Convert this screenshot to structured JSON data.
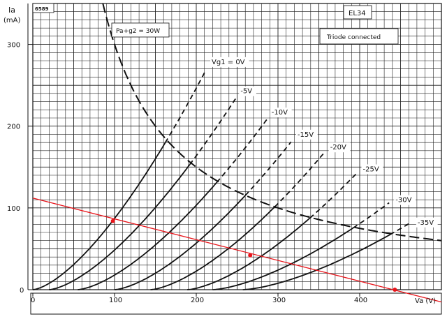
{
  "chart_data": {
    "type": "line",
    "title": "EL34",
    "subtitle": "Triode connected",
    "figure_id": "6589",
    "xlabel": "Va (V)",
    "ylabel_main": "Ia",
    "ylabel_unit": "(mA)",
    "xlim": [
      0,
      500
    ],
    "ylim": [
      0,
      350
    ],
    "x_ticks": [
      0,
      100,
      200,
      300,
      400
    ],
    "y_ticks": [
      0,
      100,
      200,
      300
    ],
    "grid": true,
    "power_curve": {
      "label": "Pa+g2 = 30W",
      "watts": 30,
      "style": "dashed"
    },
    "series": [
      {
        "name": "Vg1 = 0V",
        "start_v": 0,
        "end": [
          212,
          269
        ]
      },
      {
        "name": "-5V",
        "start_v": 20,
        "end": [
          249,
          235
        ]
      },
      {
        "name": "-10V",
        "start_v": 55,
        "end": [
          287,
          209
        ]
      },
      {
        "name": "-15V",
        "start_v": 100,
        "end": [
          317,
          182
        ]
      },
      {
        "name": "-20V",
        "start_v": 144,
        "end": [
          357,
          168
        ]
      },
      {
        "name": "-25V",
        "start_v": 189,
        "end": [
          397,
          143
        ]
      },
      {
        "name": "-30V",
        "start_v": 220,
        "end": [
          437,
          107
        ]
      },
      {
        "name": "-35V",
        "start_v": 257,
        "end": [
          464,
          83
        ]
      }
    ],
    "load_line": {
      "color": "#e8141a",
      "from": [
        0,
        112
      ],
      "to": [
        500,
        -15
      ],
      "points": [
        [
          98,
          84
        ],
        [
          266,
          42
        ],
        [
          443,
          0
        ]
      ]
    }
  }
}
